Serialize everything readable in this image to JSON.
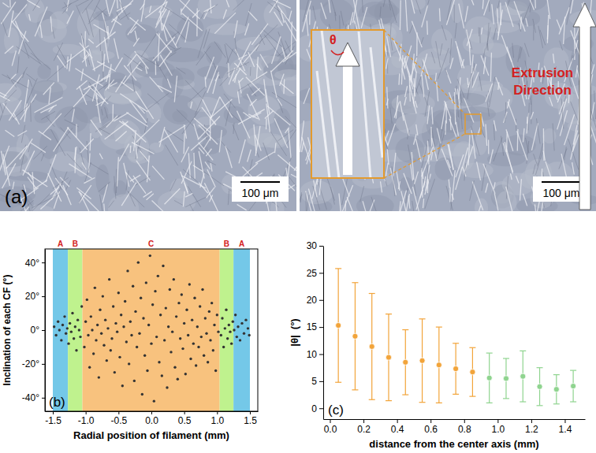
{
  "chart_data": [
    {
      "type": "image",
      "title": "(a)",
      "annotations": [
        "100 μm",
        "100 μm",
        "θ",
        "Extrusion Direction"
      ]
    },
    {
      "type": "scatter",
      "title": "(b)",
      "xlabel": "Radial position of filament (mm)",
      "ylabel": "Inclination of each CF (°)",
      "color": "#333333",
      "marker": "circle",
      "xlim": [
        -1.62,
        1.62
      ],
      "ylim": [
        -48,
        48
      ],
      "xticks": [
        -1.5,
        {
          "value": -1,
          "label": "-1.0"
        },
        -0.5,
        {
          "value": 0,
          "label": "0.0"
        },
        0.5,
        {
          "value": 1,
          "label": "1.0"
        },
        1.5
      ],
      "yticks": [
        {
          "value": -40,
          "label": "-40°"
        },
        {
          "value": -20,
          "label": "-20°"
        },
        {
          "value": 0,
          "label": "0°"
        },
        {
          "value": 20,
          "label": "20°"
        },
        {
          "value": 40,
          "label": "40°"
        }
      ],
      "regions": [
        {
          "label": "A",
          "range": [
            -1.5,
            -1.27
          ],
          "color": "#74c8e8"
        },
        {
          "label": "B",
          "range": [
            -1.27,
            -1.05
          ],
          "color": "#bff28e"
        },
        {
          "label": "C",
          "range": [
            -1.05,
            1.04
          ],
          "color": "#f8c27e"
        },
        {
          "label": "B",
          "range": [
            1.04,
            1.25
          ],
          "color": "#bff28e"
        },
        {
          "label": "A",
          "range": [
            1.25,
            1.5
          ],
          "color": "#74c8e8"
        }
      ],
      "x": [
        -1.48,
        -1.45,
        -1.42,
        -1.4,
        -1.37,
        -1.35,
        -1.32,
        -1.3,
        -1.28,
        -1.26,
        -1.24,
        -1.22,
        -1.2,
        -1.18,
        -1.16,
        -1.14,
        -1.12,
        -1.1,
        -1.08,
        -1.06,
        -1.02,
        -1,
        -0.98,
        -0.96,
        -0.94,
        -0.92,
        -0.9,
        -0.88,
        -0.86,
        -0.84,
        -0.82,
        -0.8,
        -0.78,
        -0.76,
        -0.74,
        -0.72,
        -0.7,
        -0.68,
        -0.66,
        -0.64,
        -0.62,
        -0.6,
        -0.58,
        -0.56,
        -0.54,
        -0.52,
        -0.5,
        -0.48,
        -0.46,
        -0.44,
        -0.42,
        -0.4,
        -0.38,
        -0.36,
        -0.34,
        -0.32,
        -0.3,
        -0.28,
        -0.26,
        -0.24,
        -0.22,
        -0.2,
        -0.18,
        -0.16,
        -0.14,
        -0.12,
        -0.1,
        -0.08,
        -0.06,
        -0.04,
        -0.02,
        0,
        0.02,
        0.04,
        0.06,
        0.08,
        0.1,
        0.12,
        0.14,
        0.16,
        0.18,
        0.2,
        0.22,
        0.24,
        0.26,
        0.28,
        0.3,
        0.32,
        0.34,
        0.36,
        0.38,
        0.4,
        0.42,
        0.44,
        0.46,
        0.48,
        0.5,
        0.52,
        0.54,
        0.56,
        0.58,
        0.6,
        0.62,
        0.64,
        0.66,
        0.68,
        0.7,
        0.72,
        0.74,
        0.76,
        0.78,
        0.8,
        0.82,
        0.84,
        0.86,
        0.88,
        0.9,
        0.92,
        0.94,
        0.96,
        0.98,
        1,
        1.02,
        1.06,
        1.08,
        1.1,
        1.12,
        1.14,
        1.16,
        1.18,
        1.2,
        1.22,
        1.24,
        1.26,
        1.28,
        1.3,
        1.32,
        1.35,
        1.38,
        1.41,
        1.44,
        1.47,
        1.49
      ],
      "values": [
        2,
        -3,
        5,
        0,
        -6,
        3,
        8,
        -2,
        1,
        -8,
        4,
        -1,
        10,
        -5,
        2,
        -12,
        6,
        0,
        -4,
        14,
        -10,
        5,
        18,
        -3,
        -22,
        8,
        0,
        -14,
        25,
        -6,
        3,
        -28,
        12,
        -2,
        20,
        -9,
        6,
        -18,
        1,
        30,
        -12,
        -5,
        14,
        -25,
        4,
        -1,
        22,
        -16,
        9,
        -33,
        2,
        17,
        -7,
        35,
        -20,
        5,
        -3,
        26,
        -30,
        11,
        -10,
        40,
        -2,
        19,
        -38,
        7,
        -15,
        28,
        -24,
        3,
        44,
        -8,
        15,
        -42,
        23,
        -4,
        32,
        -19,
        9,
        -27,
        38,
        -6,
        13,
        -34,
        2,
        24,
        -13,
        -1,
        30,
        -22,
        8,
        -29,
        16,
        -5,
        21,
        -11,
        4,
        -26,
        12,
        -3,
        27,
        -17,
        6,
        -8,
        19,
        -21,
        2,
        -10,
        14,
        -4,
        24,
        -15,
        7,
        -2,
        -19,
        11,
        -6,
        16,
        -12,
        3,
        -24,
        9,
        -1,
        -3,
        7,
        -10,
        1,
        12,
        -5,
        3,
        -1,
        -8,
        5,
        0,
        9,
        -4,
        2,
        -6,
        4,
        -2,
        6,
        1,
        -3
      ]
    },
    {
      "type": "scatter",
      "title": "(c)",
      "xlabel": "distance from the center axis (mm)",
      "ylabel": "|θ|  (°)",
      "marker": "circle",
      "xlim": [
        -0.04,
        1.52
      ],
      "ylim": [
        -2,
        30
      ],
      "xticks": [
        {
          "value": 0,
          "label": "0.0"
        },
        0.2,
        0.4,
        0.6,
        0.8,
        {
          "value": 1,
          "label": "1.0"
        },
        1.2,
        1.4
      ],
      "yticks": [
        0,
        5,
        10,
        15,
        20,
        25,
        30
      ],
      "series": [
        {
          "color": "#f2a43a",
          "x": [
            0.05,
            0.15,
            0.25,
            0.35,
            0.45,
            0.55,
            0.65,
            0.75,
            0.85
          ],
          "values": [
            15.3,
            13.3,
            11.4,
            9.4,
            8.5,
            8.8,
            8.0,
            7.3,
            6.7
          ],
          "errors": [
            10.5,
            9.9,
            9.8,
            8,
            6,
            7.7,
            7,
            4.7,
            4.5
          ]
        },
        {
          "color": "#8fd48f",
          "x": [
            0.95,
            1.05,
            1.15,
            1.25,
            1.35,
            1.45
          ],
          "values": [
            5.6,
            5.5,
            5.9,
            4.0,
            3.5,
            4.1
          ],
          "errors": [
            4.6,
            3.7,
            4.7,
            3.5,
            2.7,
            2.9
          ]
        }
      ]
    }
  ]
}
